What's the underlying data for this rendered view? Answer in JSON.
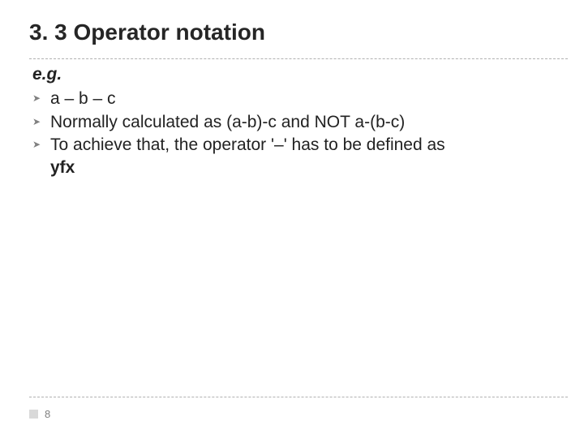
{
  "title": "3. 3 Operator notation",
  "eg_label": "e.g.",
  "bullets": [
    "a – b – c",
    "Normally calculated as (a-b)-c and NOT a-(b-c)",
    "To achieve that, the operator '–' has to be defined as"
  ],
  "yfx": "yfx",
  "page_number": "8",
  "colors": {
    "text": "#222222",
    "title": "#262626",
    "rule": "#b0b0b0",
    "muted": "#808080",
    "box": "#d9d9d9",
    "background": "#ffffff"
  },
  "font_sizes": {
    "title_pt": 28,
    "body_pt": 21,
    "bullet_marker_pt": 12,
    "pagenum_pt": 13
  }
}
